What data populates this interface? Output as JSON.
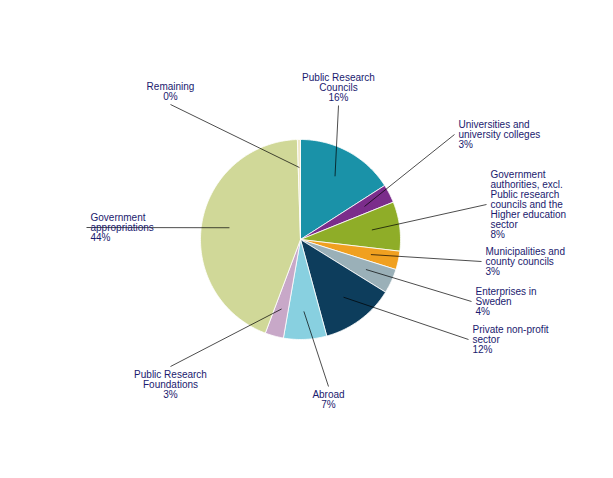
{
  "chart_data": {
    "type": "pie",
    "categories": [
      "Public Research\nCouncils",
      "Universities and\nuniversity colleges",
      "Government\nauthorities, excl.\nPublic research\ncouncils and the\nHigher education\nsector",
      "Municipalities and\ncounty councils",
      "Enterprises in\nSweden",
      "Private non-profit\nsector",
      "Abroad",
      "Public Research\nFoundations",
      "Government\nappropriations",
      "Remaining"
    ],
    "values": [
      16,
      3,
      8,
      3,
      4,
      12,
      7,
      3,
      44,
      0.5
    ],
    "value_labels": [
      "16%",
      "3%",
      "8%",
      "3%",
      "4%",
      "12%",
      "7%",
      "3%",
      "44%",
      "0%"
    ],
    "colors": [
      "#1a92a8",
      "#7b2d8b",
      "#8fad28",
      "#f0a020",
      "#9ab0b8",
      "#0d3d5c",
      "#88d0e0",
      "#c8a8c8",
      "#d0d898",
      "#f0e8c8"
    ],
    "data_labels": true
  }
}
